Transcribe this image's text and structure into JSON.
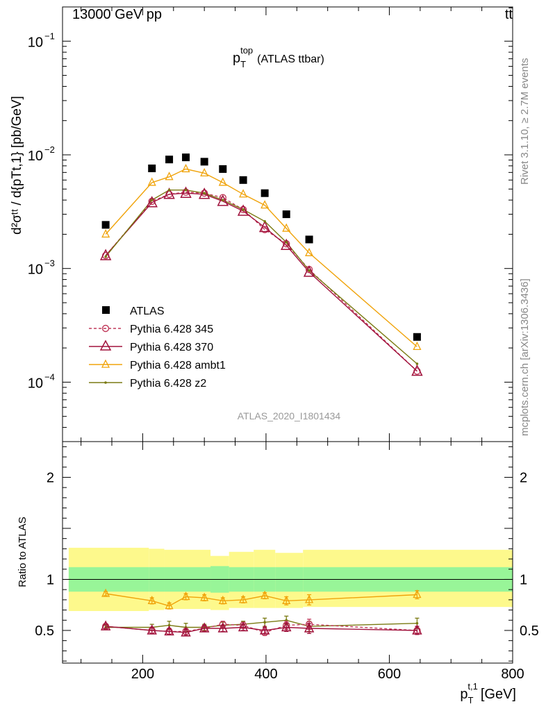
{
  "header": {
    "energy": "13000 GeV pp",
    "process": "tt̄"
  },
  "side_labels": {
    "rivet": "Rivet 3.1.10, ≥ 2.7M events",
    "site": "mcplots.cern.ch [arXiv:1306.3436]"
  },
  "chart_data": [
    {
      "id": "main",
      "type": "line",
      "title": {
        "base": "p",
        "sup": "top",
        "sub": "T",
        "suffix": "(ATLAS ttbar)"
      },
      "analysis_tag": "ATLAS_2020_I1801434",
      "ylabel": "d²σᵗᵗ / d{pTt,1} [pb/GeV]",
      "yscale": "log",
      "ylim": [
        3e-05,
        0.2
      ],
      "xlim": [
        70,
        800
      ],
      "ytick_labels": [
        {
          "base": "10",
          "exp": "−1",
          "value": 0.1
        },
        {
          "base": "10",
          "exp": "−2",
          "value": 0.01
        },
        {
          "base": "10",
          "exp": "−3",
          "value": 0.001
        },
        {
          "base": "10",
          "exp": "−4",
          "value": 0.0001
        }
      ],
      "x": [
        140,
        215,
        243,
        270,
        300,
        330,
        363,
        398,
        433,
        470,
        645
      ],
      "series": [
        {
          "name": "ATLAS",
          "color": "#000000",
          "marker": "square",
          "line": "none",
          "values": [
            0.00242,
            0.0076,
            0.0091,
            0.0095,
            0.0087,
            0.0075,
            0.006,
            0.0046,
            0.003,
            0.0018,
            0.00025
          ]
        },
        {
          "name": "Pythia 6.428 345",
          "color": "#c0395a",
          "marker": "circle",
          "line": "dashed",
          "values": [
            0.0013,
            0.0039,
            0.0045,
            0.0047,
            0.0046,
            0.0042,
            0.0033,
            0.0022,
            0.00165,
            0.00098,
            0.000125
          ]
        },
        {
          "name": "Pythia 6.428 370",
          "color": "#a0123c",
          "marker": "triangle",
          "line": "solid",
          "values": [
            0.0013,
            0.0038,
            0.0045,
            0.0046,
            0.0045,
            0.0039,
            0.0032,
            0.0023,
            0.0016,
            0.00093,
            0.000125
          ]
        },
        {
          "name": "Pythia 6.428 ambt1",
          "color": "#f0a30a",
          "marker": "triangle-open",
          "line": "solid",
          "values": [
            0.002,
            0.0057,
            0.0064,
            0.0075,
            0.0069,
            0.0057,
            0.0045,
            0.0036,
            0.00225,
            0.00137,
            0.000205
          ]
        },
        {
          "name": "Pythia 6.428 z2",
          "color": "#7a7a12",
          "marker": "dot",
          "line": "solid",
          "values": [
            0.00127,
            0.004,
            0.0049,
            0.0049,
            0.0046,
            0.004,
            0.0033,
            0.0026,
            0.0017,
            0.00096,
            0.000145
          ]
        }
      ]
    },
    {
      "id": "ratio",
      "type": "line",
      "ylabel": "Ratio to ATLAS",
      "xlabel": {
        "base": "p",
        "sub": "T",
        "sup": "t,1",
        "unit": "[GeV]"
      },
      "ylim": [
        0.18,
        2.35
      ],
      "xlim": [
        70,
        800
      ],
      "xticks": [
        200,
        400,
        600,
        800
      ],
      "yticks": [
        0.5,
        1,
        2
      ],
      "ytick_labels": [
        "0.5",
        "1",
        "2"
      ],
      "bands": {
        "edges": [
          80,
          210,
          235,
          310,
          340,
          380,
          415,
          460,
          800
        ],
        "stat_lo": [
          0.88,
          0.88,
          0.88,
          0.87,
          0.88,
          0.88,
          0.88,
          0.88
        ],
        "stat_hi": [
          1.12,
          1.12,
          1.12,
          1.13,
          1.12,
          1.12,
          1.12,
          1.12
        ],
        "tot_lo": [
          0.69,
          0.7,
          0.71,
          0.7,
          0.72,
          0.72,
          0.72,
          0.73
        ],
        "tot_hi": [
          1.31,
          1.3,
          1.29,
          1.23,
          1.27,
          1.29,
          1.26,
          1.29
        ],
        "stat_color": "#98f598",
        "tot_color": "#fdf98c"
      },
      "x": [
        140,
        215,
        243,
        270,
        300,
        330,
        363,
        398,
        433,
        470,
        645
      ],
      "series": [
        {
          "name": "Pythia 6.428 ambt1",
          "color": "#f0a30a",
          "marker": "triangle-open",
          "values": [
            0.86,
            0.79,
            0.74,
            0.83,
            0.82,
            0.79,
            0.8,
            0.84,
            0.79,
            0.8,
            0.85
          ],
          "err": [
            0.02,
            0.03,
            0.03,
            0.03,
            0.03,
            0.03,
            0.03,
            0.03,
            0.04,
            0.05,
            0.04
          ]
        },
        {
          "name": "Pythia 6.428 z2",
          "color": "#7a7a12",
          "marker": "dot",
          "values": [
            0.53,
            0.53,
            0.55,
            0.53,
            0.53,
            0.55,
            0.56,
            0.58,
            0.6,
            0.54,
            0.57
          ],
          "err": [
            0.02,
            0.03,
            0.04,
            0.04,
            0.03,
            0.03,
            0.03,
            0.04,
            0.04,
            0.05,
            0.05
          ]
        },
        {
          "name": "Pythia 6.428 345",
          "color": "#c0395a",
          "marker": "circle",
          "values": [
            0.54,
            0.5,
            0.49,
            0.49,
            0.52,
            0.56,
            0.55,
            0.48,
            0.55,
            0.56,
            0.5
          ],
          "err": [
            0.02,
            0.03,
            0.03,
            0.03,
            0.03,
            0.03,
            0.03,
            0.03,
            0.04,
            0.05,
            0.04
          ]
        },
        {
          "name": "Pythia 6.428 370",
          "color": "#a0123c",
          "marker": "triangle",
          "values": [
            0.54,
            0.5,
            0.49,
            0.48,
            0.52,
            0.52,
            0.53,
            0.5,
            0.53,
            0.52,
            0.5
          ],
          "err": [
            0.02,
            0.03,
            0.03,
            0.03,
            0.03,
            0.03,
            0.03,
            0.03,
            0.04,
            0.05,
            0.04
          ]
        }
      ]
    }
  ]
}
